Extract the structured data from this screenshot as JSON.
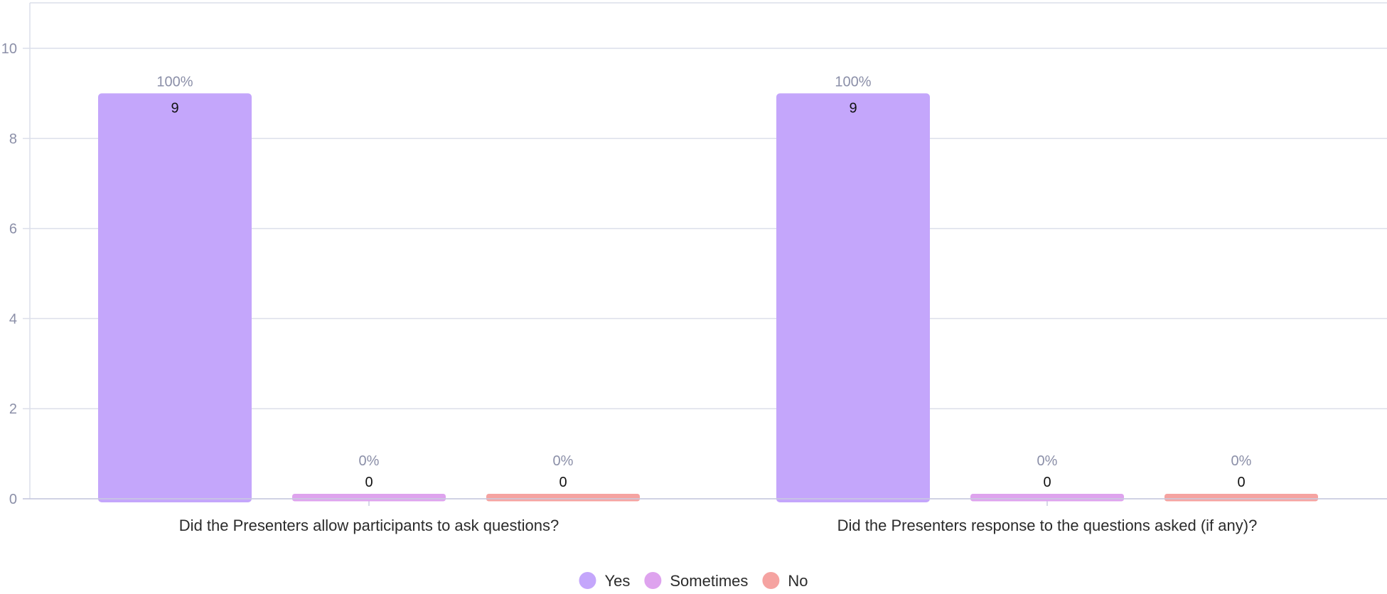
{
  "chart_data": {
    "type": "bar",
    "title": "",
    "xlabel": "",
    "ylabel": "",
    "ylim": [
      0,
      10
    ],
    "yticks": [
      0,
      2,
      4,
      6,
      8,
      10
    ],
    "grid": true,
    "legend_position": "bottom-center",
    "categories": [
      "Did the Presenters allow participants to ask questions?",
      "Did the Presenters response to the questions asked (if any)?"
    ],
    "series": [
      {
        "name": "Yes",
        "color": "#c4a6fb",
        "values": [
          9,
          9
        ],
        "labels": [
          "100%",
          "100%"
        ]
      },
      {
        "name": "Sometimes",
        "color": "#dea3ee",
        "values": [
          0,
          0
        ],
        "labels": [
          "0%",
          "0%"
        ]
      },
      {
        "name": "No",
        "color": "#f5a3a1",
        "values": [
          0,
          0
        ],
        "labels": [
          "0%",
          "0%"
        ]
      }
    ]
  }
}
